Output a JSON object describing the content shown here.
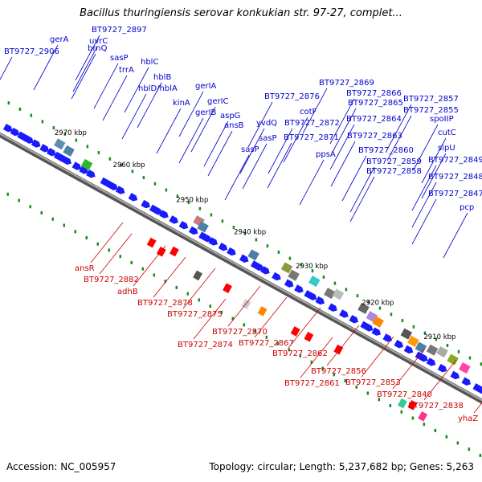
{
  "title": "Bacillus thuringiensis serovar konkukian str. 97-27, complet...",
  "footer": {
    "accession": "Accession: NC_005957",
    "topology": "Topology: circular; Length: 5,237,682 bp; Genes: 5,263"
  },
  "colors": {
    "forward": "#0000cc",
    "reverse": "#cc0000",
    "backbone": "#888888",
    "forward_gene": "#1a1aff",
    "reverse_gene": "#ff0000",
    "marker": "#1a8c1a"
  },
  "scale": {
    "unit": "kbp",
    "ticks": [
      "2970 kbp",
      "2960 kbp",
      "2950 kbp",
      "2940 kbp",
      "2930 kbp",
      "2920 kbp",
      "2910 kbp"
    ]
  },
  "forward_labels": [
    "gerA",
    "BT9727_2906",
    "BT9727_2897",
    "uvrC",
    "brnQ",
    "sasP",
    "trrA",
    "hblC",
    "hblB",
    "hblD/hblA",
    "gerIA",
    "kinA",
    "gerIC",
    "gerIB",
    "aspG",
    "ansB",
    "BT9727_2869",
    "BT9727_2866",
    "BT9727_2865",
    "BT9727_2876",
    "cotF",
    "BT9727_2872",
    "yvdQ",
    "sasP",
    "BT9727_2871",
    "sasP",
    "ppsA",
    "BT9727_2864",
    "BT9727_2863",
    "BT9727_2860",
    "BT9727_2859",
    "BT9727_2858",
    "BT9727_2857",
    "BT9727_2855",
    "spoIIP",
    "cutC",
    "sipU",
    "BT9727_2849",
    "BT9727_2848",
    "BT9727_2847",
    "pcp"
  ],
  "reverse_labels": [
    "ansR",
    "BT9727_2882",
    "adhB",
    "BT9727_2878",
    "BT9727_2875",
    "BT9727_2870",
    "BT9727_2874",
    "BT9727_2867",
    "BT9727_2862",
    "BT9727_2856",
    "BT9727_2861",
    "BT9727_2853",
    "BT9727_2840",
    "BT9727_2838",
    "yhaZ"
  ]
}
